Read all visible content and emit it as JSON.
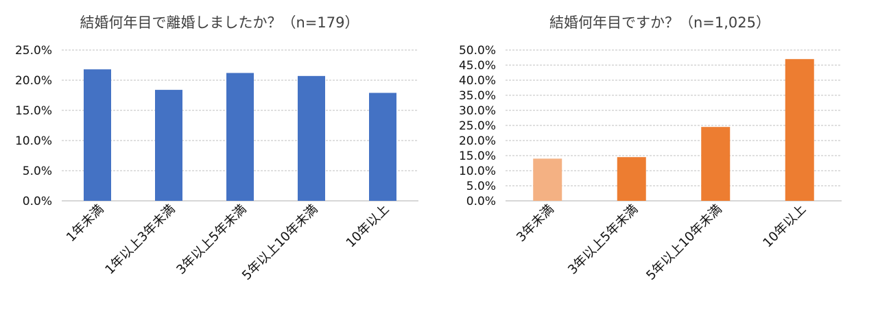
{
  "chart_data": [
    {
      "type": "bar",
      "title": "結婚何年目で離婚しましたか？（n=179）",
      "categories": [
        "1年未満",
        "1年以上3年未満",
        "3年以上5年未満",
        "5年以上10年未満",
        "10年以上"
      ],
      "values": [
        21.8,
        18.4,
        21.2,
        20.7,
        17.9
      ],
      "ylim": [
        0,
        25
      ],
      "yticks": [
        "0.0%",
        "5.0%",
        "10.0%",
        "15.0%",
        "20.0%",
        "25.0%"
      ],
      "grid": true,
      "colors": [
        "#4472C4",
        "#4472C4",
        "#4472C4",
        "#4472C4",
        "#4472C4"
      ]
    },
    {
      "type": "bar",
      "title": "結婚何年目ですか？（n=1,025）",
      "categories": [
        "3年未満",
        "3年以上5年未満",
        "5年以上10年未満",
        "10年以上"
      ],
      "values": [
        14.0,
        14.5,
        24.5,
        47.0
      ],
      "ylim": [
        0,
        50
      ],
      "yticks": [
        "0.0%",
        "5.0%",
        "10.0%",
        "15.0%",
        "20.0%",
        "25.0%",
        "30.0%",
        "35.0%",
        "40.0%",
        "45.0%",
        "50.0%"
      ],
      "grid": true,
      "colors": [
        "#F4B183",
        "#ED7D31",
        "#ED7D31",
        "#ED7D31"
      ]
    }
  ]
}
